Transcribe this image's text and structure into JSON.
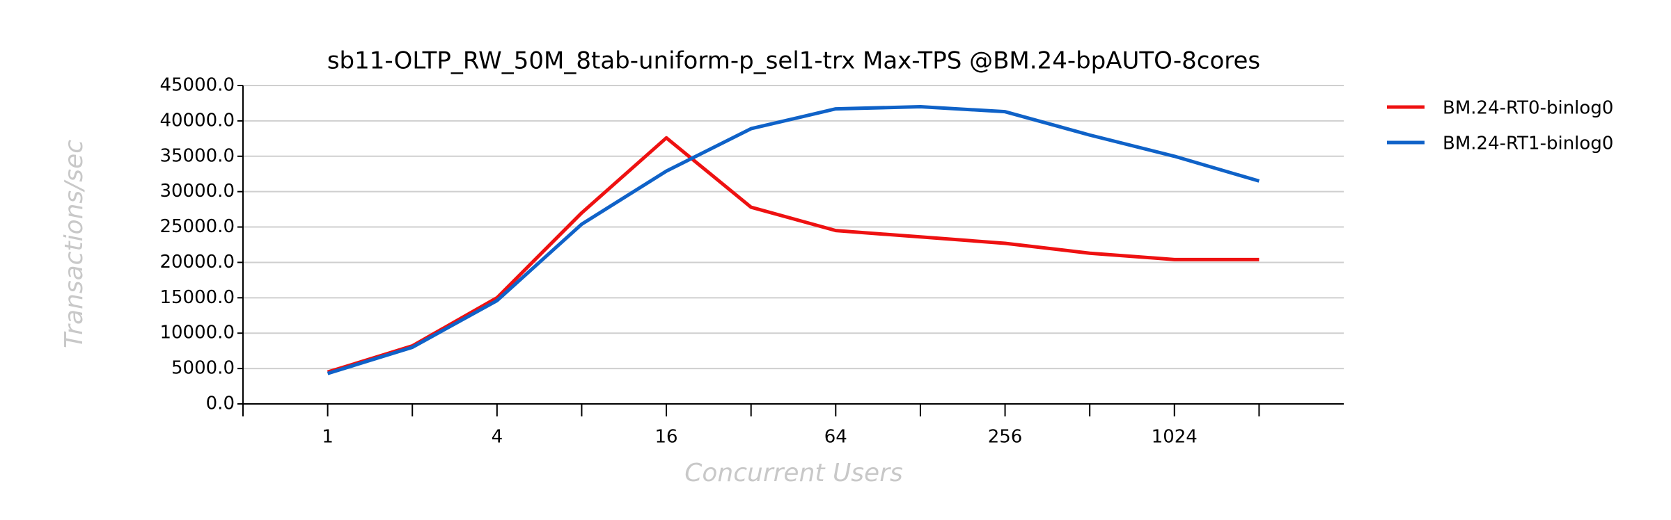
{
  "chart_data": {
    "type": "line",
    "title": "sb11-OLTP_RW_50M_8tab-uniform-p_sel1-trx Max-TPS @BM.24-bpAUTO-8cores",
    "x_label": "Concurrent Users",
    "y_label": "Transactions/sec",
    "categories": [
      "1",
      null,
      "4",
      null,
      "16",
      null,
      "64",
      null,
      "256",
      null,
      "1024",
      null
    ],
    "series": [
      {
        "name": "BM.24-RT0-binlog0",
        "color": "#ee1111",
        "values": [
          4500,
          8200,
          15000,
          27000,
          37600,
          27800,
          24500,
          23600,
          22700,
          21300,
          20400,
          20400
        ]
      },
      {
        "name": "BM.24-RT1-binlog0",
        "color": "#0f62c8",
        "values": [
          4300,
          8000,
          14600,
          25400,
          32900,
          38900,
          41700,
          42000,
          41300,
          38000,
          35000,
          31500
        ]
      }
    ],
    "ylim": [
      0,
      45000
    ],
    "yticks": [
      {
        "value": 0,
        "label": "0.0"
      },
      {
        "value": 5000,
        "label": "5000.0"
      },
      {
        "value": 10000,
        "label": "10000.0"
      },
      {
        "value": 15000,
        "label": "15000.0"
      },
      {
        "value": 20000,
        "label": "20000.0"
      },
      {
        "value": 25000,
        "label": "25000.0"
      },
      {
        "value": 30000,
        "label": "30000.0"
      },
      {
        "value": 35000,
        "label": "35000.0"
      },
      {
        "value": 40000,
        "label": "40000.0"
      },
      {
        "value": 45000,
        "label": "45000.0"
      }
    ],
    "grid": true,
    "legend": "right"
  }
}
